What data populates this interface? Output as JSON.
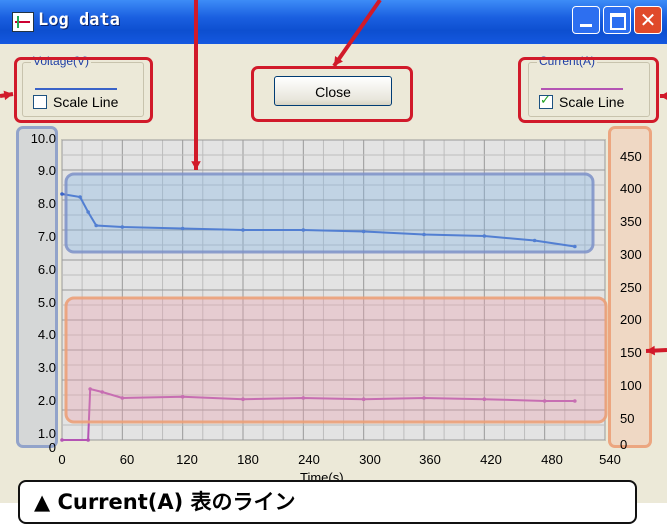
{
  "window": {
    "title": "Log data"
  },
  "voltage_group": {
    "legend": "Voltage(V)",
    "checkbox_label": "Scale Line",
    "checked": false,
    "line_color": "#3a63c8"
  },
  "current_group": {
    "legend": "Current(A)",
    "checkbox_label": "Scale Line",
    "checked": true,
    "line_color": "#b454b4"
  },
  "buttons": {
    "close_label": "Close"
  },
  "banner": {
    "text": "▲ Current(A) 表のライン"
  },
  "chart_data": {
    "type": "line",
    "xlabel": "Time(s)",
    "xlim": [
      0,
      540
    ],
    "x_ticks": [
      "0",
      "60",
      "120",
      "180",
      "240",
      "300",
      "360",
      "420",
      "480",
      "540"
    ],
    "y_left_ticks": [
      "10.0",
      "9.0",
      "8.0",
      "7.0",
      "6.0",
      "5.0",
      "4.0",
      "3.0",
      "2.0",
      "1.0",
      "0"
    ],
    "y_right_ticks": [
      "450",
      "400",
      "350",
      "300",
      "250",
      "200",
      "150",
      "100",
      "50",
      "0"
    ],
    "ylim_left": [
      0,
      10
    ],
    "ylim_right": [
      0,
      500
    ],
    "grid": true,
    "series": [
      {
        "name": "Voltage(V)",
        "axis": "left",
        "color": "#3a63c8",
        "x": [
          0,
          18,
          26,
          34,
          60,
          120,
          180,
          240,
          300,
          360,
          420,
          470,
          510
        ],
        "y": [
          8.2,
          8.1,
          7.6,
          7.15,
          7.1,
          7.05,
          7.0,
          7.0,
          6.95,
          6.85,
          6.8,
          6.65,
          6.45
        ]
      },
      {
        "name": "Current(A)",
        "axis": "right",
        "color": "#b454b4",
        "x": [
          0,
          26,
          28,
          40,
          60,
          120,
          180,
          240,
          300,
          360,
          420,
          480,
          510
        ],
        "y": [
          0,
          0,
          85,
          80,
          70,
          72,
          68,
          70,
          68,
          70,
          68,
          65,
          65
        ]
      }
    ]
  }
}
